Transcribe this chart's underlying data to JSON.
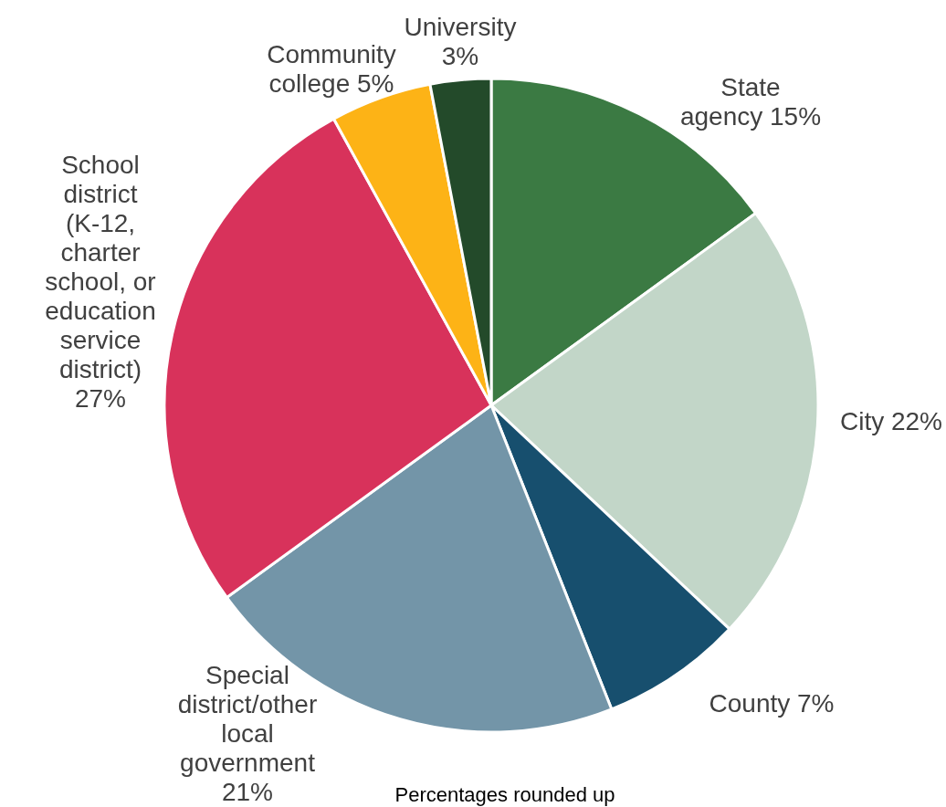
{
  "chart_data": {
    "type": "pie",
    "categories": [
      "State agency",
      "City",
      "County",
      "Special district/other local government",
      "School district (K-12, charter school, or education service district)",
      "Community college",
      "University"
    ],
    "values": [
      15,
      22,
      7,
      21,
      27,
      5,
      3
    ],
    "value_labels": [
      "15%",
      "22%",
      "7%",
      "21%",
      "27%",
      "5%",
      "3%"
    ],
    "colors": [
      "#3b7a43",
      "#c2d6c8",
      "#174f6e",
      "#7395a8",
      "#d8325b",
      "#fdb316",
      "#234a2a"
    ],
    "annotations": [
      "Percentages rounded up"
    ]
  }
}
